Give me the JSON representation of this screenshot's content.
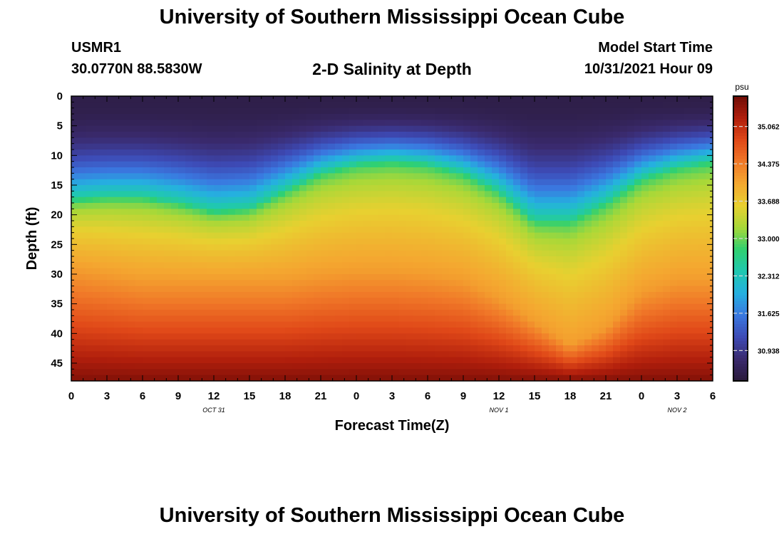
{
  "page": {
    "title": "University of Southern Mississippi Ocean Cube",
    "footer_title": "University of Southern Mississippi Ocean Cube",
    "station": "USMR1",
    "location": "30.0770N  88.5830W",
    "subtitle": "2-D Salinity at Depth",
    "model_start_label": "Model Start Time",
    "model_start_value": "10/31/2021 Hour 09"
  },
  "chart_data": {
    "type": "heatmap",
    "title": "2-D Salinity at Depth",
    "xlabel": "Forecast Time(Z)",
    "ylabel": "Depth (ft)",
    "x_range_hours": [
      0,
      54
    ],
    "y_range_ft": [
      0,
      48
    ],
    "x_ticks": [
      {
        "hour": 0,
        "label": "0"
      },
      {
        "hour": 3,
        "label": "3"
      },
      {
        "hour": 6,
        "label": "6"
      },
      {
        "hour": 9,
        "label": "9"
      },
      {
        "hour": 12,
        "label": "12"
      },
      {
        "hour": 15,
        "label": "15"
      },
      {
        "hour": 18,
        "label": "18"
      },
      {
        "hour": 21,
        "label": "21"
      },
      {
        "hour": 24,
        "label": "0"
      },
      {
        "hour": 27,
        "label": "3"
      },
      {
        "hour": 30,
        "label": "6"
      },
      {
        "hour": 33,
        "label": "9"
      },
      {
        "hour": 36,
        "label": "12"
      },
      {
        "hour": 39,
        "label": "15"
      },
      {
        "hour": 42,
        "label": "18"
      },
      {
        "hour": 45,
        "label": "21"
      },
      {
        "hour": 48,
        "label": "0"
      },
      {
        "hour": 51,
        "label": "3"
      },
      {
        "hour": 54,
        "label": "6"
      }
    ],
    "date_labels": [
      {
        "hour": 12,
        "label": "OCT 31"
      },
      {
        "hour": 36,
        "label": "NOV 1"
      },
      {
        "hour": 51,
        "label": "NOV 2"
      }
    ],
    "y_ticks": [
      0,
      5,
      10,
      15,
      20,
      25,
      30,
      35,
      40,
      45
    ],
    "colorbar": {
      "units": "psu",
      "range": [
        30.38,
        35.62
      ],
      "ticks": [
        35.062,
        34.375,
        33.688,
        33.0,
        32.312,
        31.625,
        30.938
      ],
      "tick_labels": [
        "35.062",
        "34.375",
        "33.688",
        "33.000",
        "32.312",
        "31.625",
        "30.938"
      ]
    },
    "surface_mixed_layer_ft": [
      {
        "hour": 0,
        "depth": 17.5
      },
      {
        "hour": 3,
        "depth": 17
      },
      {
        "hour": 6,
        "depth": 17
      },
      {
        "hour": 9,
        "depth": 18
      },
      {
        "hour": 12,
        "depth": 19.5
      },
      {
        "hour": 15,
        "depth": 19
      },
      {
        "hour": 18,
        "depth": 16
      },
      {
        "hour": 21,
        "depth": 13
      },
      {
        "hour": 24,
        "depth": 11.5
      },
      {
        "hour": 27,
        "depth": 11
      },
      {
        "hour": 30,
        "depth": 11.5
      },
      {
        "hour": 33,
        "depth": 13
      },
      {
        "hour": 36,
        "depth": 16
      },
      {
        "hour": 39,
        "depth": 21
      },
      {
        "hour": 42,
        "depth": 21
      },
      {
        "hour": 45,
        "depth": 18
      },
      {
        "hour": 48,
        "depth": 14
      },
      {
        "hour": 51,
        "depth": 12
      },
      {
        "hour": 54,
        "depth": 11
      }
    ],
    "deep_layer_ft": [
      {
        "hour": 0,
        "depth": 29
      },
      {
        "hour": 3,
        "depth": 30
      },
      {
        "hour": 6,
        "depth": 31
      },
      {
        "hour": 9,
        "depth": 31
      },
      {
        "hour": 12,
        "depth": 31
      },
      {
        "hour": 15,
        "depth": 31
      },
      {
        "hour": 18,
        "depth": 31
      },
      {
        "hour": 21,
        "depth": 30
      },
      {
        "hour": 24,
        "depth": 29.5
      },
      {
        "hour": 27,
        "depth": 29.5
      },
      {
        "hour": 30,
        "depth": 30
      },
      {
        "hour": 33,
        "depth": 31
      },
      {
        "hour": 36,
        "depth": 34
      },
      {
        "hour": 39,
        "depth": 38
      },
      {
        "hour": 42,
        "depth": 42
      },
      {
        "hour": 45,
        "depth": 39
      },
      {
        "hour": 48,
        "depth": 33
      },
      {
        "hour": 51,
        "depth": 31
      },
      {
        "hour": 54,
        "depth": 31
      }
    ],
    "salinity_surface_psu": 30.5,
    "salinity_mid_psu": 33.2,
    "salinity_bottom_psu": 35.5
  },
  "colors": {
    "scale": [
      "#2a1a3a",
      "#3a2a6e",
      "#3d4ab5",
      "#3a78e0",
      "#25b0e0",
      "#20c8b0",
      "#30d070",
      "#a8d838",
      "#e8d030",
      "#f4a830",
      "#f07828",
      "#e04818",
      "#b01e0c",
      "#6e0c06"
    ]
  }
}
